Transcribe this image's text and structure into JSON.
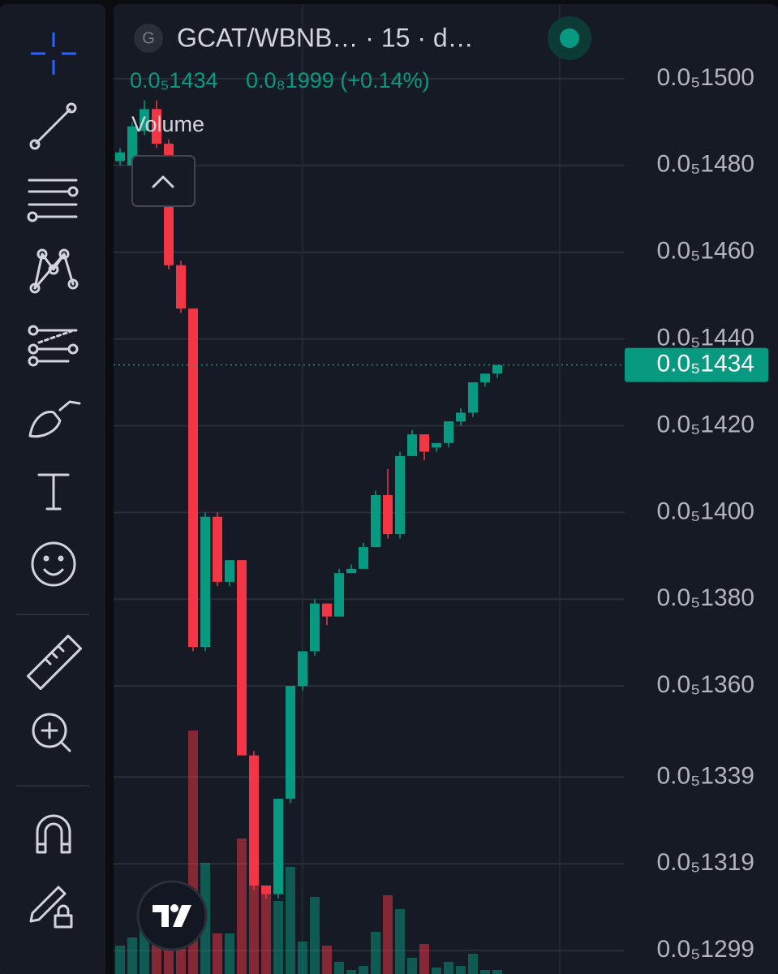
{
  "chart_data": {
    "type": "candlestick",
    "title": "GCAT/WBNB… · 15 · d…",
    "symbol_badge": "G",
    "legend_values": [
      "0.0₅1434",
      "0.0₈1999 (+0.14%)"
    ],
    "volume_label": "Volume",
    "up_color": "#089981",
    "down_color": "#f23645",
    "open": [
      1.481e-06,
      1.48e-06,
      1.488e-06,
      1.493e-06,
      1.485e-06,
      1.457e-06,
      1.447e-06,
      1.369e-06,
      1.399e-06,
      1.384e-06,
      1.389e-06,
      1.344e-06,
      1.314e-06,
      1.312e-06,
      1.334e-06,
      1.36e-06,
      1.368e-06,
      1.379e-06,
      1.376e-06,
      1.386e-06,
      1.387e-06,
      1.392e-06,
      1.404e-06,
      1.395e-06,
      1.413e-06,
      1.418e-06,
      1.415e-06,
      1.416e-06,
      1.421e-06,
      1.423e-06,
      1.43e-06,
      1.432e-06
    ],
    "high": [
      1.484e-06,
      1.49e-06,
      1.495e-06,
      1.495e-06,
      1.486e-06,
      1.458e-06,
      1.447e-06,
      1.4e-06,
      1.4e-06,
      1.389e-06,
      1.389e-06,
      1.345e-06,
      1.314e-06,
      1.334e-06,
      1.36e-06,
      1.368e-06,
      1.38e-06,
      1.379e-06,
      1.387e-06,
      1.388e-06,
      1.393e-06,
      1.405e-06,
      1.41e-06,
      1.414e-06,
      1.419e-06,
      1.418e-06,
      1.416e-06,
      1.421e-06,
      1.424e-06,
      1.43e-06,
      1.432e-06,
      1.434e-06
    ],
    "low": [
      1.48e-06,
      1.479e-06,
      1.487e-06,
      1.484e-06,
      1.456e-06,
      1.446e-06,
      1.368e-06,
      1.368e-06,
      1.383e-06,
      1.383e-06,
      1.344e-06,
      1.313e-06,
      1.311e-06,
      1.311e-06,
      1.333e-06,
      1.359e-06,
      1.367e-06,
      1.374e-06,
      1.376e-06,
      1.386e-06,
      1.387e-06,
      1.392e-06,
      1.394e-06,
      1.394e-06,
      1.413e-06,
      1.412e-06,
      1.414e-06,
      1.415e-06,
      1.42e-06,
      1.422e-06,
      1.429e-06,
      1.431e-06
    ],
    "close": [
      1.483e-06,
      1.489e-06,
      1.493e-06,
      1.485e-06,
      1.457e-06,
      1.447e-06,
      1.369e-06,
      1.399e-06,
      1.384e-06,
      1.389e-06,
      1.344e-06,
      1.314e-06,
      1.312e-06,
      1.334e-06,
      1.36e-06,
      1.368e-06,
      1.379e-06,
      1.376e-06,
      1.386e-06,
      1.387e-06,
      1.392e-06,
      1.404e-06,
      1.395e-06,
      1.413e-06,
      1.418e-06,
      1.414e-06,
      1.416e-06,
      1.421e-06,
      1.423e-06,
      1.43e-06,
      1.432e-06,
      1.434e-06
    ],
    "volume": [
      35,
      45,
      60,
      50,
      80,
      50,
      300,
      137,
      50,
      50,
      167,
      140,
      108,
      90,
      132,
      40,
      95,
      35,
      15,
      5,
      10,
      52,
      97,
      80,
      20,
      37,
      8,
      15,
      10,
      25,
      5,
      5
    ],
    "volume_lim": [
      0,
      400
    ],
    "ylim": [
      1.2936e-06,
      1.5172e-06
    ],
    "yticks": [
      {
        "value": 1.5e-06,
        "label": "0.0₅1500"
      },
      {
        "value": 1.48e-06,
        "label": "0.0₅1480"
      },
      {
        "value": 1.46e-06,
        "label": "0.0₅1460"
      },
      {
        "value": 1.44e-06,
        "label": "0.0₅1440"
      },
      {
        "value": 1.42e-06,
        "label": "0.0₅1420"
      },
      {
        "value": 1.4e-06,
        "label": "0.0₅1400"
      },
      {
        "value": 1.38e-06,
        "label": "0.0₅1380"
      },
      {
        "value": 1.36e-06,
        "label": "0.0₅1360"
      },
      {
        "value": 1.339e-06,
        "label": "0.0₅1339"
      },
      {
        "value": 1.319e-06,
        "label": "0.0₅1319"
      },
      {
        "value": 1.299e-06,
        "label": "0.0₅1299"
      }
    ],
    "grid": true,
    "last_price": {
      "value": 1.434e-06,
      "label": "0.0₅1434"
    }
  }
}
